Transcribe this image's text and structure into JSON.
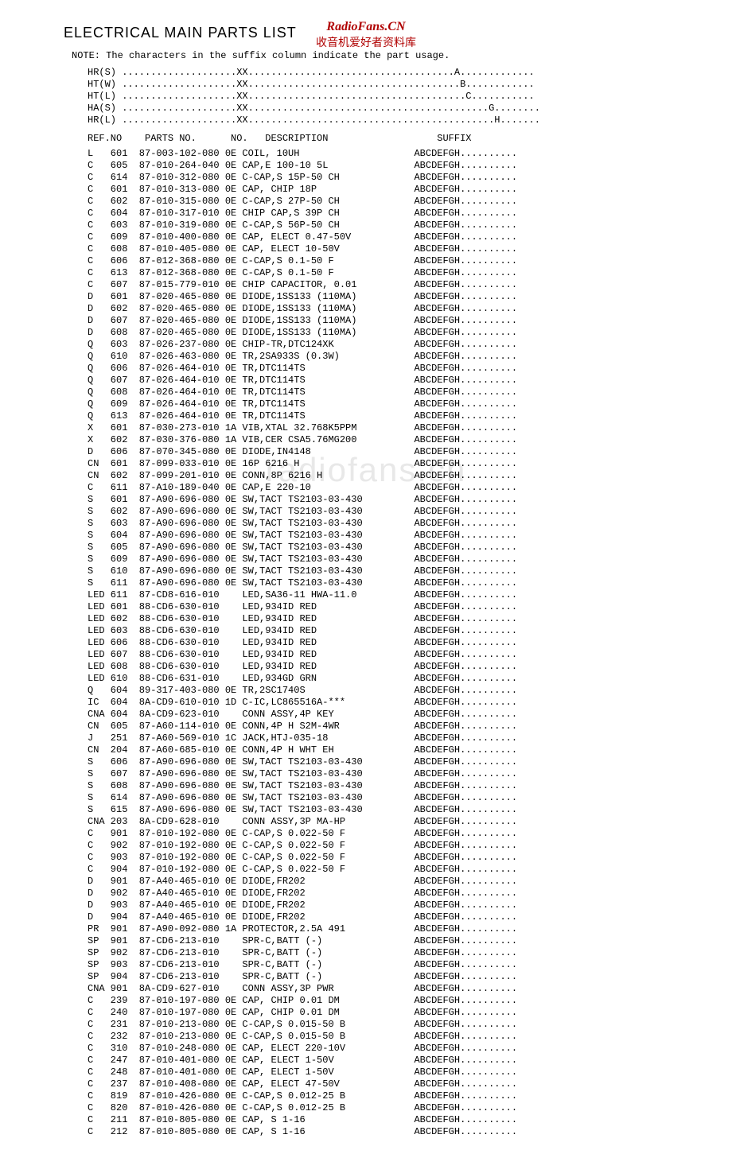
{
  "watermark": {
    "site": "RadioFans.CN",
    "subtitle": "收音机爱好者资料库",
    "mid": "radiofans.cn"
  },
  "title": "ELECTRICAL MAIN PARTS LIST",
  "note": "NOTE: The characters in the suffix column indicate the part usage.",
  "legend": [
    {
      "code": "HR(S)",
      "dots1": "....................",
      "xx": "XX",
      "dots2": "....................................",
      "letter": "A",
      "dots3": "............."
    },
    {
      "code": "HT(W)",
      "dots1": "....................",
      "xx": "XX",
      "dots2": ".....................................",
      "letter": "B",
      "dots3": "............"
    },
    {
      "code": "HT(L)",
      "dots1": "....................",
      "xx": "XX",
      "dots2": "......................................",
      "letter": "C",
      "dots3": "..........."
    },
    {
      "code": "HA(S)",
      "dots1": "....................",
      "xx": "XX",
      "dots2": "..........................................",
      "letter": "G",
      "dots3": "........"
    },
    {
      "code": "HR(L)",
      "dots1": "....................",
      "xx": "XX",
      "dots2": "...........................................",
      "letter": "H",
      "dots3": "......."
    }
  ],
  "headers": {
    "refno": "REF.NO",
    "partsno": "PARTS NO.",
    "no": "NO.",
    "description": "DESCRIPTION",
    "suffix": "SUFFIX"
  },
  "rows": [
    {
      "ref": "L",
      "num": "601",
      "parts": "87-003-102-080",
      "no": "0E",
      "desc": "COIL, 10UH",
      "suffix": "ABCDEFGH.........."
    },
    {
      "ref": "C",
      "num": "605",
      "parts": "87-010-264-040",
      "no": "0E",
      "desc": "CAP,E 100-10 5L",
      "suffix": "ABCDEFGH.........."
    },
    {
      "ref": "C",
      "num": "614",
      "parts": "87-010-312-080",
      "no": "0E",
      "desc": "C-CAP,S 15P-50 CH",
      "suffix": "ABCDEFGH.........."
    },
    {
      "ref": "C",
      "num": "601",
      "parts": "87-010-313-080",
      "no": "0E",
      "desc": "CAP, CHIP 18P",
      "suffix": "ABCDEFGH.........."
    },
    {
      "ref": "C",
      "num": "602",
      "parts": "87-010-315-080",
      "no": "0E",
      "desc": "C-CAP,S 27P-50 CH",
      "suffix": "ABCDEFGH.........."
    },
    {
      "ref": "C",
      "num": "604",
      "parts": "87-010-317-010",
      "no": "0E",
      "desc": "CHIP CAP,S 39P CH",
      "suffix": "ABCDEFGH.........."
    },
    {
      "ref": "C",
      "num": "603",
      "parts": "87-010-319-080",
      "no": "0E",
      "desc": "C-CAP,S 56P-50 CH",
      "suffix": "ABCDEFGH.........."
    },
    {
      "ref": "C",
      "num": "609",
      "parts": "87-010-400-080",
      "no": "0E",
      "desc": "CAP, ELECT 0.47-50V",
      "suffix": "ABCDEFGH.........."
    },
    {
      "ref": "C",
      "num": "608",
      "parts": "87-010-405-080",
      "no": "0E",
      "desc": "CAP, ELECT 10-50V",
      "suffix": "ABCDEFGH.........."
    },
    {
      "ref": "C",
      "num": "606",
      "parts": "87-012-368-080",
      "no": "0E",
      "desc": "C-CAP,S 0.1-50 F",
      "suffix": "ABCDEFGH.........."
    },
    {
      "ref": "C",
      "num": "613",
      "parts": "87-012-368-080",
      "no": "0E",
      "desc": "C-CAP,S 0.1-50 F",
      "suffix": "ABCDEFGH.........."
    },
    {
      "ref": "C",
      "num": "607",
      "parts": "87-015-779-010",
      "no": "0E",
      "desc": "CHIP CAPACITOR, 0.01",
      "suffix": "ABCDEFGH.........."
    },
    {
      "ref": "D",
      "num": "601",
      "parts": "87-020-465-080",
      "no": "0E",
      "desc": "DIODE,1SS133 (110MA)",
      "suffix": "ABCDEFGH.........."
    },
    {
      "ref": "D",
      "num": "602",
      "parts": "87-020-465-080",
      "no": "0E",
      "desc": "DIODE,1SS133 (110MA)",
      "suffix": "ABCDEFGH.........."
    },
    {
      "ref": "D",
      "num": "607",
      "parts": "87-020-465-080",
      "no": "0E",
      "desc": "DIODE,1SS133 (110MA)",
      "suffix": "ABCDEFGH.........."
    },
    {
      "ref": "D",
      "num": "608",
      "parts": "87-020-465-080",
      "no": "0E",
      "desc": "DIODE,1SS133 (110MA)",
      "suffix": "ABCDEFGH.........."
    },
    {
      "ref": "Q",
      "num": "603",
      "parts": "87-026-237-080",
      "no": "0E",
      "desc": "CHIP-TR,DTC124XK",
      "suffix": "ABCDEFGH.........."
    },
    {
      "ref": "Q",
      "num": "610",
      "parts": "87-026-463-080",
      "no": "0E",
      "desc": "TR,2SA933S (0.3W)",
      "suffix": "ABCDEFGH.........."
    },
    {
      "ref": "Q",
      "num": "606",
      "parts": "87-026-464-010",
      "no": "0E",
      "desc": "TR,DTC114TS",
      "suffix": "ABCDEFGH.........."
    },
    {
      "ref": "Q",
      "num": "607",
      "parts": "87-026-464-010",
      "no": "0E",
      "desc": "TR,DTC114TS",
      "suffix": "ABCDEFGH.........."
    },
    {
      "ref": "Q",
      "num": "608",
      "parts": "87-026-464-010",
      "no": "0E",
      "desc": "TR,DTC114TS",
      "suffix": "ABCDEFGH.........."
    },
    {
      "ref": "Q",
      "num": "609",
      "parts": "87-026-464-010",
      "no": "0E",
      "desc": "TR,DTC114TS",
      "suffix": "ABCDEFGH.........."
    },
    {
      "ref": "Q",
      "num": "613",
      "parts": "87-026-464-010",
      "no": "0E",
      "desc": "TR,DTC114TS",
      "suffix": "ABCDEFGH.........."
    },
    {
      "ref": "X",
      "num": "601",
      "parts": "87-030-273-010",
      "no": "1A",
      "desc": "VIB,XTAL 32.768K5PPM",
      "suffix": "ABCDEFGH.........."
    },
    {
      "ref": "X",
      "num": "602",
      "parts": "87-030-376-080",
      "no": "1A",
      "desc": "VIB,CER CSA5.76MG200",
      "suffix": "ABCDEFGH.........."
    },
    {
      "ref": "D",
      "num": "606",
      "parts": "87-070-345-080",
      "no": "0E",
      "desc": "DIODE,IN4148",
      "suffix": "ABCDEFGH.........."
    },
    {
      "ref": "CN",
      "num": "601",
      "parts": "87-099-033-010",
      "no": "0E",
      "desc": "16P 6216 H",
      "suffix": "ABCDEFGH.........."
    },
    {
      "ref": "CN",
      "num": "602",
      "parts": "87-099-201-010",
      "no": "0E",
      "desc": "CONN,8P 6216 H",
      "suffix": "ABCDEFGH.........."
    },
    {
      "ref": "C",
      "num": "611",
      "parts": "87-A10-189-040",
      "no": "0E",
      "desc": "CAP,E 220-10",
      "suffix": "ABCDEFGH.........."
    },
    {
      "ref": "S",
      "num": "601",
      "parts": "87-A90-696-080",
      "no": "0E",
      "desc": "SW,TACT TS2103-03-430",
      "suffix": "ABCDEFGH.........."
    },
    {
      "ref": "S",
      "num": "602",
      "parts": "87-A90-696-080",
      "no": "0E",
      "desc": "SW,TACT TS2103-03-430",
      "suffix": "ABCDEFGH.........."
    },
    {
      "ref": "S",
      "num": "603",
      "parts": "87-A90-696-080",
      "no": "0E",
      "desc": "SW,TACT TS2103-03-430",
      "suffix": "ABCDEFGH.........."
    },
    {
      "ref": "S",
      "num": "604",
      "parts": "87-A90-696-080",
      "no": "0E",
      "desc": "SW,TACT TS2103-03-430",
      "suffix": "ABCDEFGH.........."
    },
    {
      "ref": "S",
      "num": "605",
      "parts": "87-A90-696-080",
      "no": "0E",
      "desc": "SW,TACT TS2103-03-430",
      "suffix": "ABCDEFGH.........."
    },
    {
      "ref": "S",
      "num": "609",
      "parts": "87-A90-696-080",
      "no": "0E",
      "desc": "SW,TACT TS2103-03-430",
      "suffix": "ABCDEFGH.........."
    },
    {
      "ref": "S",
      "num": "610",
      "parts": "87-A90-696-080",
      "no": "0E",
      "desc": "SW,TACT TS2103-03-430",
      "suffix": "ABCDEFGH.........."
    },
    {
      "ref": "S",
      "num": "611",
      "parts": "87-A90-696-080",
      "no": "0E",
      "desc": "SW,TACT TS2103-03-430",
      "suffix": "ABCDEFGH.........."
    },
    {
      "ref": "LED",
      "num": "611",
      "parts": "87-CD8-616-010",
      "no": "",
      "desc": "LED,SA36-11 HWA-11.0",
      "suffix": "ABCDEFGH.........."
    },
    {
      "ref": "LED",
      "num": "601",
      "parts": "88-CD6-630-010",
      "no": "",
      "desc": "LED,934ID RED",
      "suffix": "ABCDEFGH.........."
    },
    {
      "ref": "LED",
      "num": "602",
      "parts": "88-CD6-630-010",
      "no": "",
      "desc": "LED,934ID RED",
      "suffix": "ABCDEFGH.........."
    },
    {
      "ref": "LED",
      "num": "603",
      "parts": "88-CD6-630-010",
      "no": "",
      "desc": "LED,934ID RED",
      "suffix": "ABCDEFGH.........."
    },
    {
      "ref": "LED",
      "num": "606",
      "parts": "88-CD6-630-010",
      "no": "",
      "desc": "LED,934ID RED",
      "suffix": "ABCDEFGH.........."
    },
    {
      "ref": "LED",
      "num": "607",
      "parts": "88-CD6-630-010",
      "no": "",
      "desc": "LED,934ID RED",
      "suffix": "ABCDEFGH.........."
    },
    {
      "ref": "LED",
      "num": "608",
      "parts": "88-CD6-630-010",
      "no": "",
      "desc": "LED,934ID RED",
      "suffix": "ABCDEFGH.........."
    },
    {
      "ref": "LED",
      "num": "610",
      "parts": "88-CD6-631-010",
      "no": "",
      "desc": "LED,934GD GRN",
      "suffix": "ABCDEFGH.........."
    },
    {
      "ref": "Q",
      "num": "604",
      "parts": "89-317-403-080",
      "no": "0E",
      "desc": "TR,2SC1740S",
      "suffix": "ABCDEFGH.........."
    },
    {
      "ref": "IC",
      "num": "604",
      "parts": "8A-CD9-610-010",
      "no": "1D",
      "desc": "C-IC,LC865516A-***",
      "suffix": "ABCDEFGH.........."
    },
    {
      "ref": "CNA",
      "num": "604",
      "parts": "8A-CD9-623-010",
      "no": "",
      "desc": "CONN ASSY,4P KEY",
      "suffix": "ABCDEFGH.........."
    },
    {
      "ref": "CN",
      "num": "605",
      "parts": "87-A60-114-010",
      "no": "0E",
      "desc": "CONN,4P H S2M-4WR",
      "suffix": "ABCDEFGH.........."
    },
    {
      "ref": "J",
      "num": "251",
      "parts": "87-A60-569-010",
      "no": "1C",
      "desc": "JACK,HTJ-035-18",
      "suffix": "ABCDEFGH.........."
    },
    {
      "ref": "CN",
      "num": "204",
      "parts": "87-A60-685-010",
      "no": "0E",
      "desc": "CONN,4P H WHT EH",
      "suffix": "ABCDEFGH.........."
    },
    {
      "ref": "S",
      "num": "606",
      "parts": "87-A90-696-080",
      "no": "0E",
      "desc": "SW,TACT TS2103-03-430",
      "suffix": "ABCDEFGH.........."
    },
    {
      "ref": "S",
      "num": "607",
      "parts": "87-A90-696-080",
      "no": "0E",
      "desc": "SW,TACT TS2103-03-430",
      "suffix": "ABCDEFGH.........."
    },
    {
      "ref": "S",
      "num": "608",
      "parts": "87-A90-696-080",
      "no": "0E",
      "desc": "SW,TACT TS2103-03-430",
      "suffix": "ABCDEFGH.........."
    },
    {
      "ref": "S",
      "num": "614",
      "parts": "87-A90-696-080",
      "no": "0E",
      "desc": "SW,TACT TS2103-03-430",
      "suffix": "ABCDEFGH.........."
    },
    {
      "ref": "S",
      "num": "615",
      "parts": "87-A90-696-080",
      "no": "0E",
      "desc": "SW,TACT TS2103-03-430",
      "suffix": "ABCDEFGH.........."
    },
    {
      "ref": "CNA",
      "num": "203",
      "parts": "8A-CD9-628-010",
      "no": "",
      "desc": "CONN ASSY,3P MA-HP",
      "suffix": "ABCDEFGH.........."
    },
    {
      "ref": "C",
      "num": "901",
      "parts": "87-010-192-080",
      "no": "0E",
      "desc": "C-CAP,S 0.022-50 F",
      "suffix": "ABCDEFGH.........."
    },
    {
      "ref": "C",
      "num": "902",
      "parts": "87-010-192-080",
      "no": "0E",
      "desc": "C-CAP,S 0.022-50 F",
      "suffix": "ABCDEFGH.........."
    },
    {
      "ref": "C",
      "num": "903",
      "parts": "87-010-192-080",
      "no": "0E",
      "desc": "C-CAP,S 0.022-50 F",
      "suffix": "ABCDEFGH.........."
    },
    {
      "ref": "C",
      "num": "904",
      "parts": "87-010-192-080",
      "no": "0E",
      "desc": "C-CAP,S 0.022-50 F",
      "suffix": "ABCDEFGH.........."
    },
    {
      "ref": "D",
      "num": "901",
      "parts": "87-A40-465-010",
      "no": "0E",
      "desc": "DIODE,FR202",
      "suffix": "ABCDEFGH.........."
    },
    {
      "ref": "D",
      "num": "902",
      "parts": "87-A40-465-010",
      "no": "0E",
      "desc": "DIODE,FR202",
      "suffix": "ABCDEFGH.........."
    },
    {
      "ref": "D",
      "num": "903",
      "parts": "87-A40-465-010",
      "no": "0E",
      "desc": "DIODE,FR202",
      "suffix": "ABCDEFGH.........."
    },
    {
      "ref": "D",
      "num": "904",
      "parts": "87-A40-465-010",
      "no": "0E",
      "desc": "DIODE,FR202",
      "suffix": "ABCDEFGH.........."
    },
    {
      "ref": "PR",
      "num": "901",
      "parts": "87-A90-092-080",
      "no": "1A",
      "desc": "PROTECTOR,2.5A 491",
      "suffix": "ABCDEFGH.........."
    },
    {
      "ref": "SP",
      "num": "901",
      "parts": "87-CD6-213-010",
      "no": "",
      "desc": "SPR-C,BATT (-)",
      "suffix": "ABCDEFGH.........."
    },
    {
      "ref": "SP",
      "num": "902",
      "parts": "87-CD6-213-010",
      "no": "",
      "desc": "SPR-C,BATT (-)",
      "suffix": "ABCDEFGH.........."
    },
    {
      "ref": "SP",
      "num": "903",
      "parts": "87-CD6-213-010",
      "no": "",
      "desc": "SPR-C,BATT (-)",
      "suffix": "ABCDEFGH.........."
    },
    {
      "ref": "SP",
      "num": "904",
      "parts": "87-CD6-213-010",
      "no": "",
      "desc": "SPR-C,BATT (-)",
      "suffix": "ABCDEFGH.........."
    },
    {
      "ref": "CNA",
      "num": "901",
      "parts": "8A-CD9-627-010",
      "no": "",
      "desc": "CONN ASSY,3P PWR",
      "suffix": "ABCDEFGH.........."
    },
    {
      "ref": "C",
      "num": "239",
      "parts": "87-010-197-080",
      "no": "0E",
      "desc": "CAP, CHIP 0.01 DM",
      "suffix": "ABCDEFGH.........."
    },
    {
      "ref": "C",
      "num": "240",
      "parts": "87-010-197-080",
      "no": "0E",
      "desc": "CAP, CHIP 0.01 DM",
      "suffix": "ABCDEFGH.........."
    },
    {
      "ref": "C",
      "num": "231",
      "parts": "87-010-213-080",
      "no": "0E",
      "desc": "C-CAP,S 0.015-50 B",
      "suffix": "ABCDEFGH.........."
    },
    {
      "ref": "C",
      "num": "232",
      "parts": "87-010-213-080",
      "no": "0E",
      "desc": "C-CAP,S 0.015-50 B",
      "suffix": "ABCDEFGH.........."
    },
    {
      "ref": "C",
      "num": "310",
      "parts": "87-010-248-080",
      "no": "0E",
      "desc": "CAP, ELECT 220-10V",
      "suffix": "ABCDEFGH.........."
    },
    {
      "ref": "C",
      "num": "247",
      "parts": "87-010-401-080",
      "no": "0E",
      "desc": "CAP, ELECT 1-50V",
      "suffix": "ABCDEFGH.........."
    },
    {
      "ref": "C",
      "num": "248",
      "parts": "87-010-401-080",
      "no": "0E",
      "desc": "CAP, ELECT 1-50V",
      "suffix": "ABCDEFGH.........."
    },
    {
      "ref": "C",
      "num": "237",
      "parts": "87-010-408-080",
      "no": "0E",
      "desc": "CAP, ELECT 47-50V",
      "suffix": "ABCDEFGH.........."
    },
    {
      "ref": "C",
      "num": "819",
      "parts": "87-010-426-080",
      "no": "0E",
      "desc": "C-CAP,S 0.012-25 B",
      "suffix": "ABCDEFGH.........."
    },
    {
      "ref": "C",
      "num": "820",
      "parts": "87-010-426-080",
      "no": "0E",
      "desc": "C-CAP,S 0.012-25 B",
      "suffix": "ABCDEFGH.........."
    },
    {
      "ref": "C",
      "num": "211",
      "parts": "87-010-805-080",
      "no": "0E",
      "desc": "CAP, S 1-16",
      "suffix": "ABCDEFGH.........."
    },
    {
      "ref": "C",
      "num": "212",
      "parts": "87-010-805-080",
      "no": "0E",
      "desc": "CAP, S 1-16",
      "suffix": "ABCDEFGH.........."
    }
  ],
  "layout": {
    "col_ref": 4,
    "col_num": 5,
    "col_parts": 15,
    "col_no": 3,
    "col_desc": 30,
    "col_suffix": 20
  }
}
